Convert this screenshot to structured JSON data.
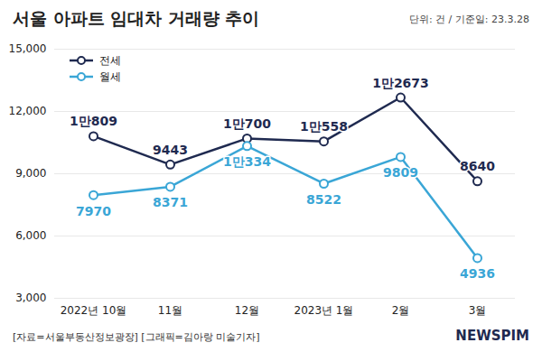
{
  "chart_data": {
    "type": "line",
    "title": "서울 아파트 임대차 거래량 추이",
    "subtitle": "단위: 건 / 기준일: 23.3.28",
    "source": "[자료=서울부동산정보광장] [그래픽=김아랑 미술기자]",
    "logo": "NEWSPIM",
    "categories": [
      "2022년 10월",
      "11월",
      "12월",
      "2023년 1월",
      "2월",
      "3월"
    ],
    "series": [
      {
        "name": "전세",
        "color": "#1f2a50",
        "marker": "circle",
        "values": [
          10809,
          9443,
          10700,
          10558,
          12673,
          8640
        ],
        "value_labels": [
          "1만809",
          "9443",
          "1만700",
          "1만558",
          "1만2673",
          "8640"
        ]
      },
      {
        "name": "월세",
        "color": "#3aa6d6",
        "marker": "circle",
        "values": [
          7970,
          8371,
          10334,
          8522,
          9809,
          4936
        ],
        "value_labels": [
          "7970",
          "8371",
          "1만334",
          "8522",
          "9809",
          "4936"
        ]
      }
    ],
    "ylim": [
      3000,
      15000
    ],
    "yticks": [
      3000,
      6000,
      9000,
      12000,
      15000
    ],
    "grid": true,
    "legend": "top-left",
    "data_labels": true
  }
}
